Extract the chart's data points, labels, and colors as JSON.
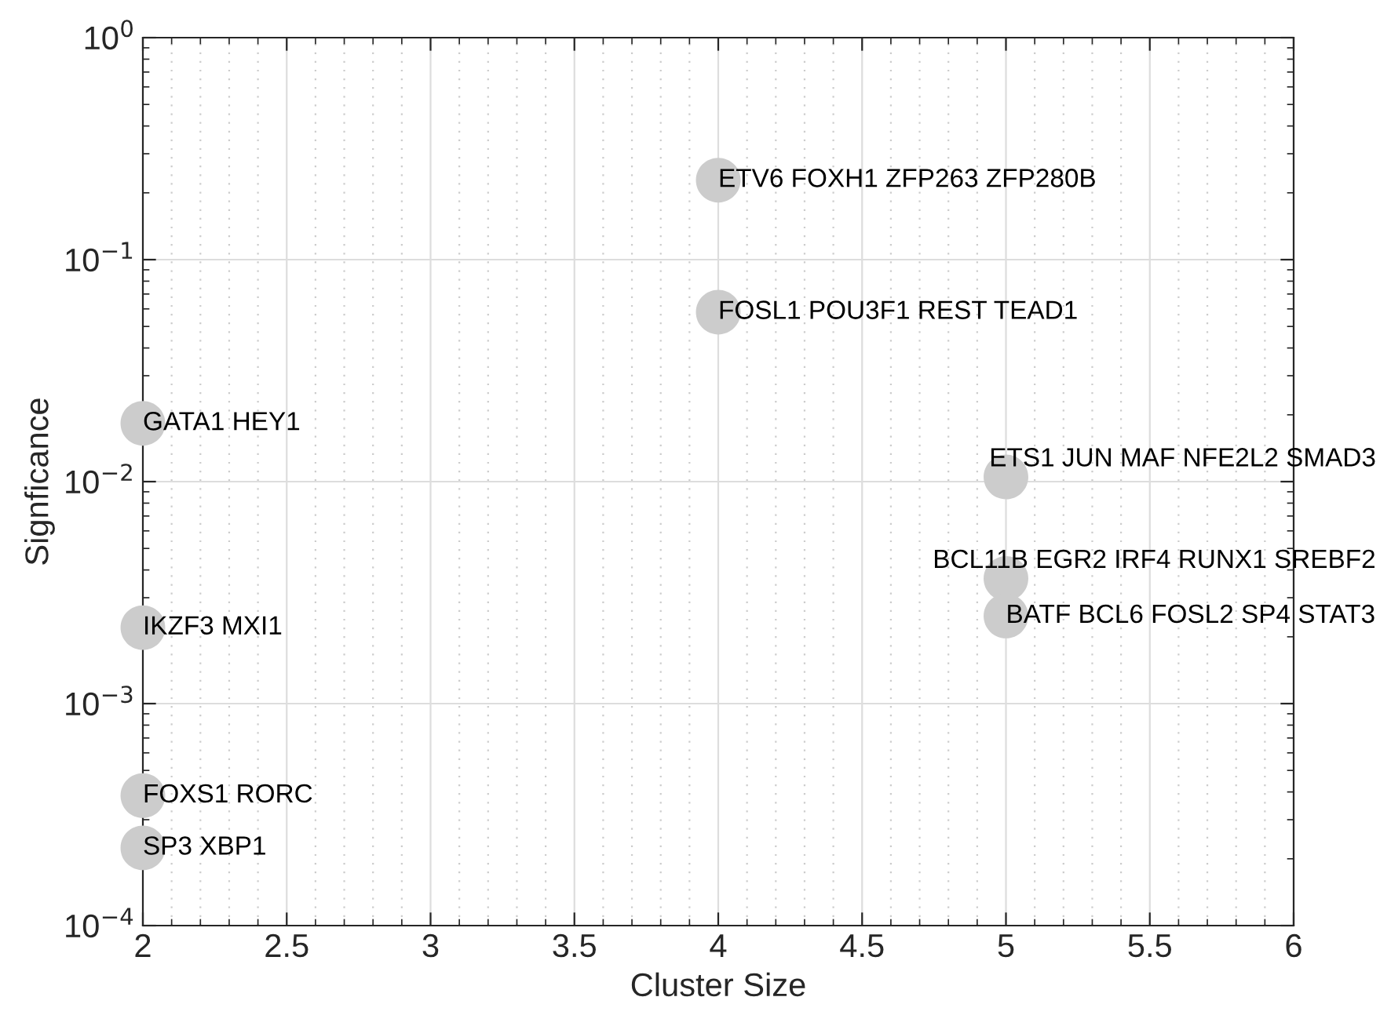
{
  "chart_data": {
    "type": "scatter",
    "xlabel": "Cluster Size",
    "ylabel": "Signficance",
    "log": "y",
    "grid": true,
    "marker": "circle",
    "x": [
      2,
      2,
      2,
      2,
      4,
      4,
      5,
      5,
      5
    ],
    "series": [
      {
        "color": "#cccccc",
        "values": [
          0.0183,
          0.0022,
          0.000385,
          0.000224,
          0.228,
          0.058,
          0.0105,
          0.00366,
          0.00248
        ]
      }
    ],
    "annotations": [
      {
        "text": "GATA1 HEY1",
        "x": 2,
        "y": 0.0183
      },
      {
        "text": "IKZF3 MXI1",
        "x": 2,
        "y": 0.0022
      },
      {
        "text": "FOXS1 RORC",
        "x": 2,
        "y": 0.000385
      },
      {
        "text": "SP3 XBP1",
        "x": 2,
        "y": 0.000224
      },
      {
        "text": "ETV6 FOXH1 ZFP263 ZFP280B",
        "x": 4,
        "y": 0.228
      },
      {
        "text": "FOSL1 POU3F1 REST TEAD1",
        "x": 4,
        "y": 0.058
      },
      {
        "text": "ETS1 JUN MAF NFE2L2 SMAD3",
        "x": 5,
        "y": 0.0105
      },
      {
        "text": "BCL11B EGR2 IRF4 RUNX1 SREBF2",
        "x": 5,
        "y": 0.00366
      },
      {
        "text": "BATF BCL6 FOSL2 SP4 STAT3",
        "x": 5,
        "y": 0.00248
      }
    ],
    "xlim": [
      2,
      6
    ],
    "xticks": [
      2,
      2.5,
      3,
      3.5,
      4,
      4.5,
      5,
      5.5,
      6
    ],
    "ylim": [
      0.0001,
      1
    ],
    "yticks": [
      {
        "value": 0.0001,
        "label": "10$^{−4}$"
      },
      {
        "value": 0.001,
        "label": "10$^{−3}$"
      },
      {
        "value": 0.01,
        "label": "10$^{−2}$"
      },
      {
        "value": 0.1,
        "label": "10$^{−1}$"
      },
      {
        "value": 1,
        "label": "10$^{0}$"
      }
    ]
  }
}
